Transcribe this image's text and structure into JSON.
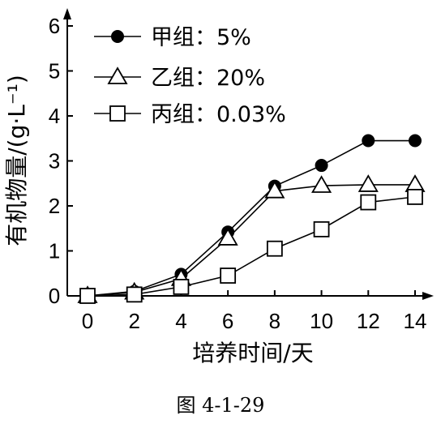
{
  "figure_caption": "图 4-1-29",
  "chart_data": {
    "type": "line",
    "xlabel": "培养时间/天",
    "ylabel": "有机物量/(g·L⁻¹)",
    "x": [
      0,
      2,
      4,
      6,
      8,
      10,
      12,
      14
    ],
    "xlim": [
      0,
      14
    ],
    "ylim": [
      0,
      6
    ],
    "x_ticks": [
      "0",
      "2",
      "4",
      "6",
      "8",
      "10",
      "12",
      "14"
    ],
    "y_ticks": [
      "0",
      "1",
      "2",
      "3",
      "4",
      "5",
      "6"
    ],
    "grid": false,
    "legend_position": "top-left",
    "series": [
      {
        "name": "甲组：5%",
        "marker": "circle-filled",
        "values": [
          0,
          0.1,
          0.48,
          1.42,
          2.44,
          2.9,
          3.45,
          3.45
        ]
      },
      {
        "name": "乙组：20%",
        "marker": "triangle-open",
        "values": [
          0,
          0.08,
          0.38,
          1.28,
          2.33,
          2.45,
          2.47,
          2.47
        ]
      },
      {
        "name": "丙组：0.03%",
        "marker": "square-open",
        "values": [
          0,
          0.03,
          0.2,
          0.45,
          1.05,
          1.48,
          2.08,
          2.2
        ]
      }
    ]
  }
}
